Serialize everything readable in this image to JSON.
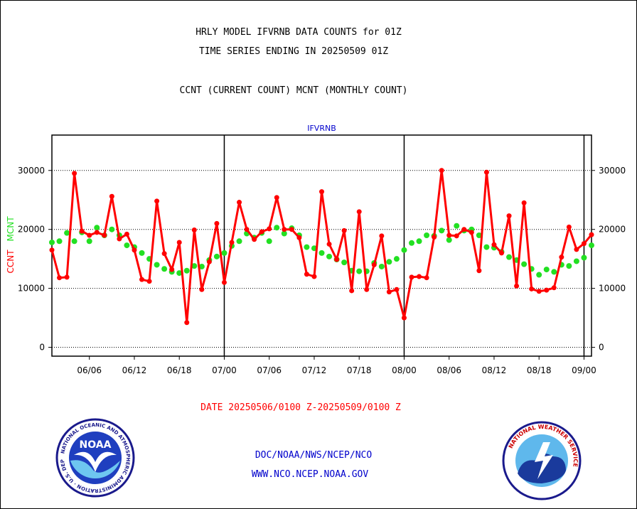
{
  "header": {
    "line1": "HRLY MODEL IFVRNB DATA COUNTS for 01Z",
    "line2": "TIME SERIES ENDING IN 20250509 01Z",
    "line3": "CCNT (CURRENT COUNT) MCNT (MONTHLY COUNT)"
  },
  "footer": {
    "date_range": "DATE 20250506/0100 Z-20250509/0100 Z",
    "org": "DOC/NOAA/NWS/NCEP/NCO",
    "url": "WWW.NCO.NCEP.NOAA.GOV"
  },
  "logos": {
    "noaa_label": "NOAA",
    "noaa_ring_text": "NATIONAL OCEANIC AND ATMOSPHERIC ADMINISTRATION · U.S. DEPARTMENT OF COMMERCE",
    "nws_ring_text": "NATIONAL WEATHER SERVICE"
  },
  "colors": {
    "ccnt": "#ff0000",
    "mcnt": "#22e022",
    "title_blue": "#0000cc",
    "text": "#000000"
  },
  "chart_data": {
    "type": "line",
    "title": "IFVRNB",
    "ylabel_ccnt": "CCNT",
    "ylabel_mcnt": "MCNT",
    "ylim": [
      -1500,
      36000
    ],
    "yticks": [
      0,
      10000,
      20000,
      30000
    ],
    "grid": true,
    "x_start": "06/01",
    "x_end": "09/02",
    "xtick_labels": [
      "06/06",
      "06/12",
      "06/18",
      "07/00",
      "07/06",
      "07/12",
      "07/18",
      "08/00",
      "08/06",
      "08/12",
      "08/18",
      "09/00"
    ],
    "xtick_days": [
      5,
      11,
      17,
      23,
      29,
      35,
      41,
      47,
      53,
      59,
      65,
      71
    ],
    "month_boundaries": [
      "07/00",
      "08/00",
      "09/00"
    ],
    "month_boundary_days": [
      23,
      47,
      71
    ],
    "series": [
      {
        "name": "CCNT",
        "values": [
          16500,
          11800,
          11900,
          29500,
          19700,
          19000,
          19500,
          19000,
          25600,
          18400,
          19200,
          16500,
          11500,
          11200,
          24800,
          15900,
          13200,
          17800,
          4200,
          19900,
          9800,
          14500,
          21000,
          11000,
          17800,
          24600,
          20000,
          18300,
          19600,
          20100,
          25400,
          20000,
          20000,
          18600,
          12400,
          12000,
          26400,
          17500,
          14900,
          19800,
          9600,
          23000,
          9800,
          14000,
          18900,
          9400,
          9800,
          5000,
          11900,
          12000,
          11800,
          18700,
          30000,
          19000,
          18900,
          20000,
          19500,
          13000,
          29700,
          17400,
          16000,
          22300,
          10400,
          24500,
          9900,
          9500,
          9700,
          10100,
          15300,
          20400,
          16600,
          17600,
          19100
        ]
      },
      {
        "name": "MCNT",
        "values": [
          17800,
          18000,
          19400,
          18000,
          19500,
          18000,
          20300,
          19000,
          20000,
          19000,
          17300,
          17000,
          16000,
          15000,
          14000,
          13300,
          12800,
          12600,
          13000,
          13800,
          13700,
          14800,
          15400,
          16000,
          17200,
          18000,
          19300,
          18600,
          19400,
          18000,
          20300,
          19300,
          20200,
          19000,
          17000,
          16800,
          16000,
          15400,
          14900,
          14400,
          13000,
          12900,
          12900,
          14300,
          13700,
          14500,
          15000,
          16500,
          17700,
          18000,
          19000,
          18900,
          19800,
          18200,
          20600,
          19800,
          20000,
          19000,
          17000,
          16900,
          16200,
          15300,
          14800,
          14100,
          13300,
          12300,
          13200,
          12800,
          14000,
          13800,
          14600,
          15200,
          17300
        ]
      }
    ]
  }
}
